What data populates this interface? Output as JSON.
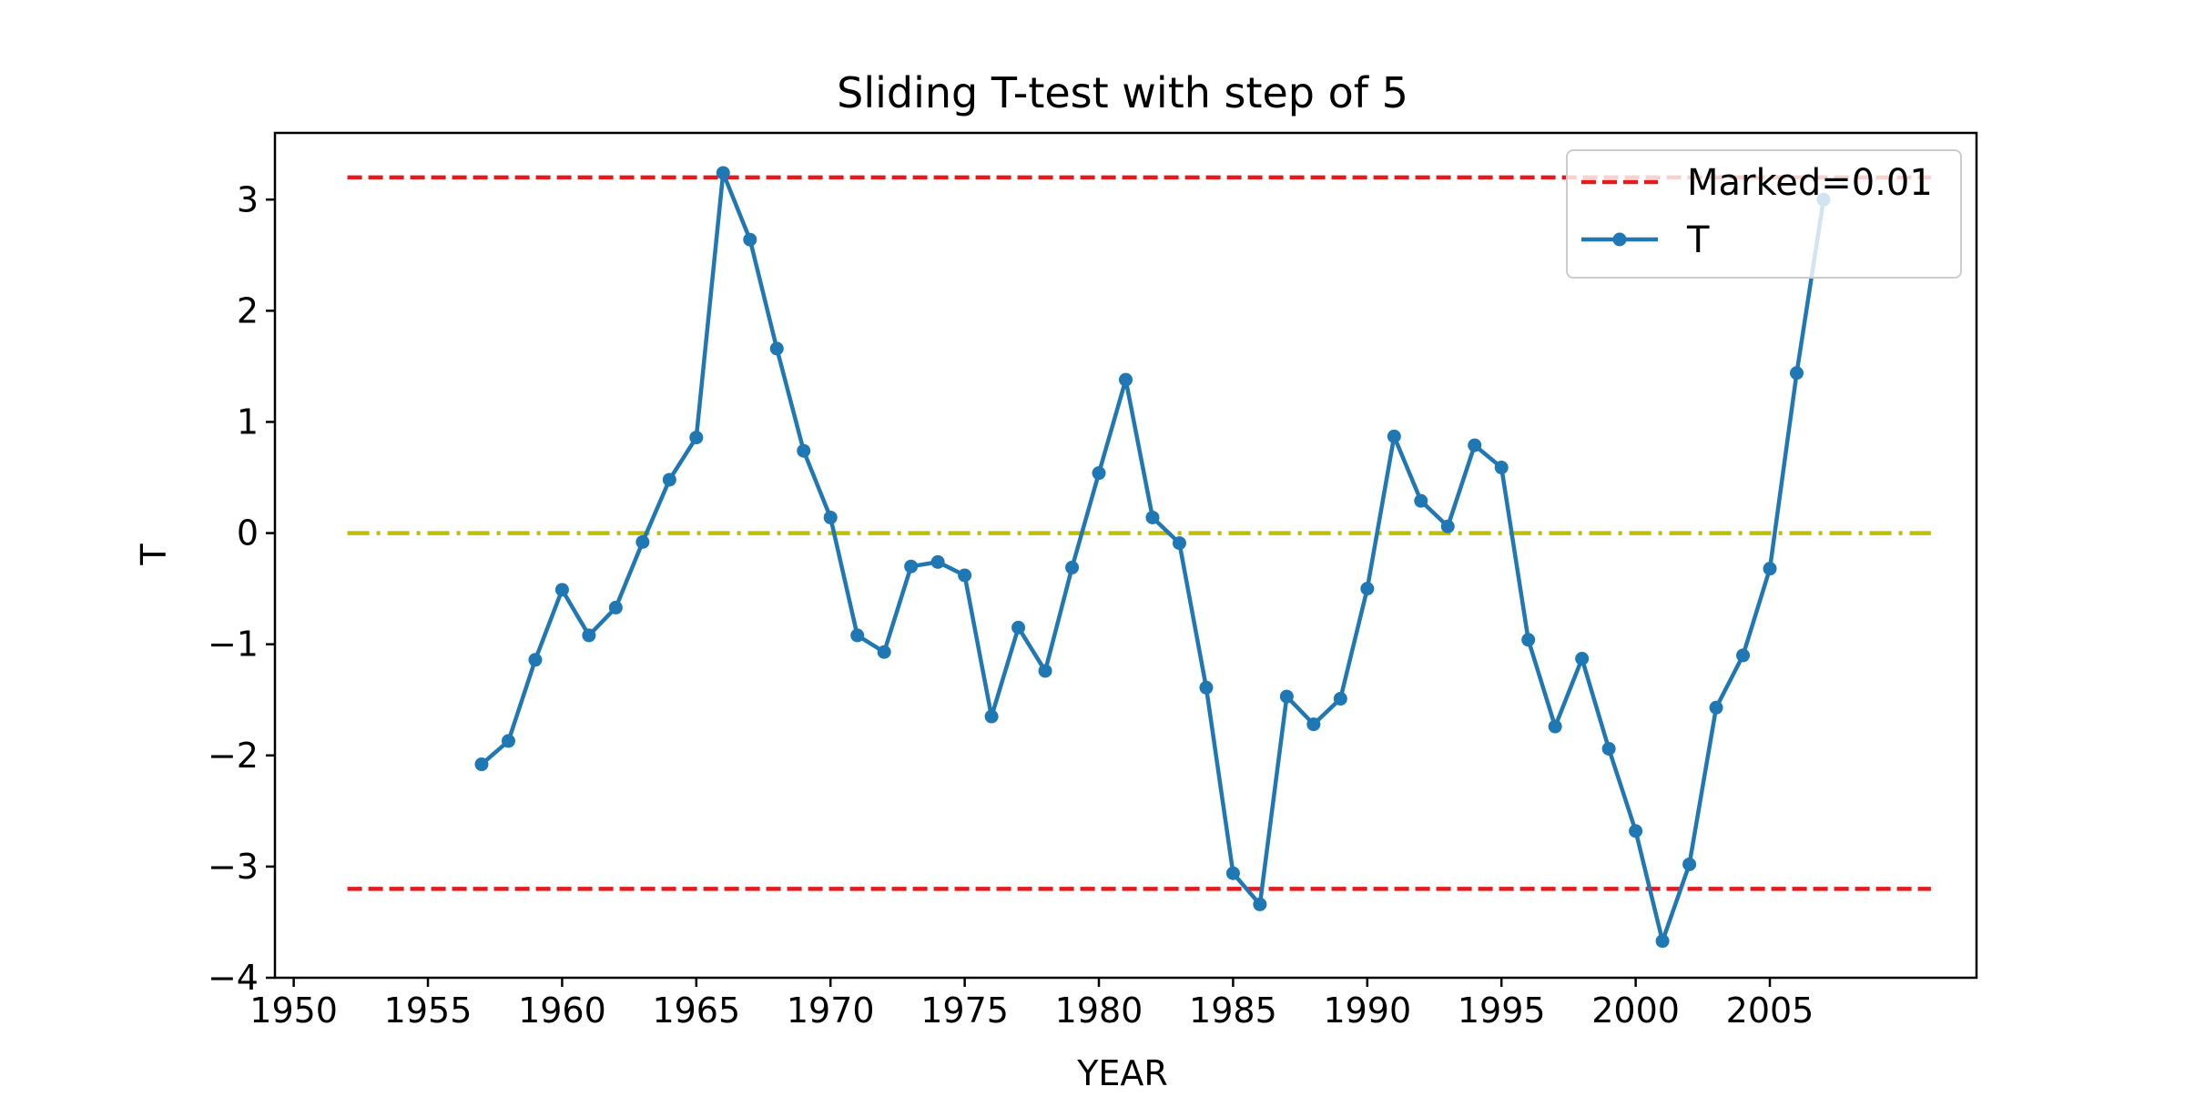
{
  "chart_data": {
    "type": "line",
    "title": "Sliding T-test with step of 5",
    "xlabel": "YEAR",
    "ylabel": "T",
    "xlim": [
      1949.3,
      2012.7
    ],
    "ylim": [
      -4.0,
      3.6
    ],
    "xticks": [
      1950,
      1955,
      1960,
      1965,
      1970,
      1975,
      1980,
      1985,
      1990,
      1995,
      2000,
      2005
    ],
    "yticks": [
      -4,
      -3,
      -2,
      -1,
      0,
      1,
      2,
      3
    ],
    "ytick_labels": [
      "−4",
      "−3",
      "−2",
      "−1",
      "0",
      "1",
      "2",
      "3"
    ],
    "grid": false,
    "legend_position": "top-right",
    "reference_lines": [
      {
        "name": "Marked=0.01",
        "y": 3.2,
        "x_range": [
          1952,
          2011
        ],
        "color": "#e41a1c",
        "style": "dashed"
      },
      {
        "name": "",
        "y": -3.2,
        "x_range": [
          1952,
          2011
        ],
        "color": "#e41a1c",
        "style": "dashed"
      },
      {
        "name": "",
        "y": 0,
        "x_range": [
          1952,
          2011
        ],
        "color": "#bfbf00",
        "style": "dashdot"
      }
    ],
    "series": [
      {
        "name": "T",
        "color": "#1f77b4",
        "marker": "circle",
        "x": [
          1957,
          1958,
          1959,
          1960,
          1961,
          1962,
          1963,
          1964,
          1965,
          1966,
          1967,
          1968,
          1969,
          1970,
          1971,
          1972,
          1973,
          1974,
          1975,
          1976,
          1977,
          1978,
          1979,
          1980,
          1981,
          1982,
          1983,
          1984,
          1985,
          1986,
          1987,
          1988,
          1989,
          1990,
          1991,
          1992,
          1993,
          1994,
          1995,
          1996,
          1997,
          1998,
          1999,
          2000,
          2001,
          2002,
          2003,
          2004,
          2005,
          2006,
          2007
        ],
        "values": [
          -2.08,
          -1.87,
          -1.14,
          -0.51,
          -0.92,
          -0.67,
          -0.08,
          0.48,
          0.86,
          3.24,
          2.64,
          1.66,
          0.74,
          0.14,
          -0.92,
          -1.07,
          -0.3,
          -0.26,
          -0.38,
          -1.65,
          -0.85,
          -1.24,
          -0.31,
          0.54,
          1.38,
          0.14,
          -0.09,
          -1.39,
          -3.06,
          -3.34,
          -1.47,
          -1.72,
          -1.49,
          -0.5,
          0.87,
          0.29,
          0.06,
          0.79,
          0.59,
          -0.96,
          -1.74,
          -1.13,
          -1.94,
          -2.68,
          -3.67,
          -2.98,
          -1.57,
          -1.1,
          -0.32,
          1.44,
          3.0
        ]
      }
    ]
  }
}
